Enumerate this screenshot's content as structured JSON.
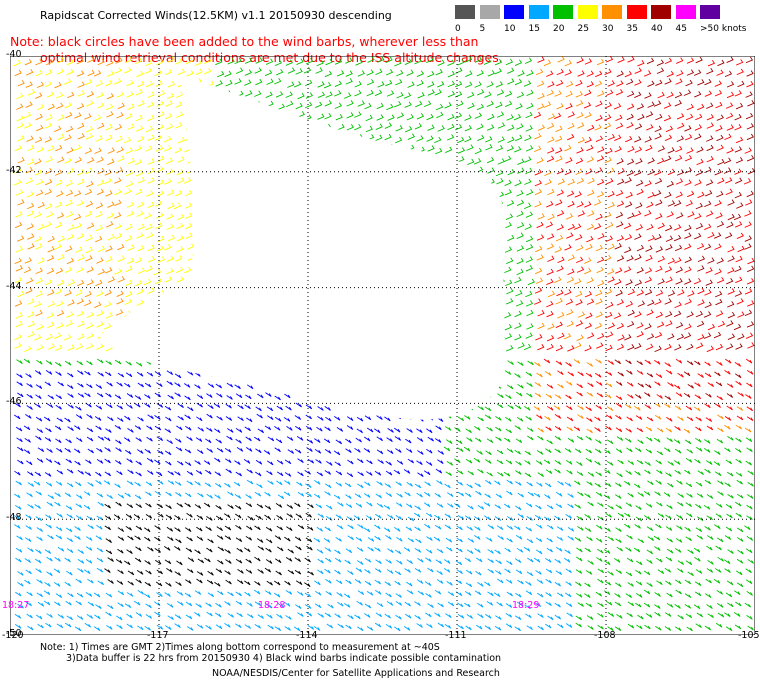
{
  "header": {
    "title": "Rapidscat Corrected Winds(12.5KM) v1.1 20150930 descending",
    "note_line1": "Note: black circles have been added to the wind barbs, wherever less than",
    "note_line2": "optimal wind retrieval conditions are met due to the ISS altitude changes."
  },
  "legend": {
    "labels": [
      "0",
      "5",
      "10",
      "15",
      "20",
      "25",
      "30",
      "35",
      "40",
      "45",
      ">50 knots"
    ],
    "colors": [
      "#555555",
      "#a8a8a8",
      "#0000ff",
      "#00a8ff",
      "#00c000",
      "#ffff00",
      "#ff9000",
      "#ff0000",
      "#a00000",
      "#ff00ff",
      "#6000a0"
    ]
  },
  "axes": {
    "lat_labels": [
      "-40",
      "-42",
      "-44",
      "-46",
      "-48",
      "-50"
    ],
    "lon_labels": [
      "-120",
      "-117",
      "-114",
      "-111",
      "-108",
      "-105"
    ]
  },
  "times": [
    "18:27",
    "18:28",
    "18:29"
  ],
  "footer": {
    "line1": "Note: 1) Times are GMT 2)Times along bottom correspond to measurement at ~40S",
    "line2": "3)Data buffer is 22 hrs from 20150930 4) Black wind barbs indicate possible contamination",
    "line3": "NOAA/NESDIS/Center for Satellite Applications and Research"
  },
  "map": {
    "lat_range": [
      -50,
      -40
    ],
    "lon_range": [
      -120,
      -105
    ],
    "grid_lines": "dotted"
  }
}
